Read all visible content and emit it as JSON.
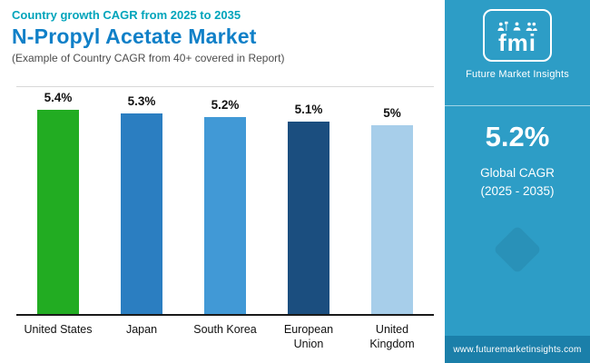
{
  "header": {
    "eyebrow": "Country growth CAGR from 2025 to 2035",
    "title": "N-Propyl Acetate Market",
    "subtitle": "(Example of Country CAGR from 40+ covered in Report)"
  },
  "chart_data": {
    "type": "bar",
    "title": "N-Propyl Acetate Market - Country growth CAGR from 2025 to 2035",
    "categories": [
      "United States",
      "Japan",
      "South Korea",
      "European Union",
      "United Kingdom"
    ],
    "values": [
      5.4,
      5.3,
      5.2,
      5.1,
      5.0
    ],
    "value_labels": [
      "5.4%",
      "5.3%",
      "5.2%",
      "5.1%",
      "5%"
    ],
    "bar_colors": [
      "#22ac22",
      "#2b7ec1",
      "#4199d6",
      "#1b4e7f",
      "#a7ceea"
    ],
    "xlabel": "",
    "ylabel": "",
    "ylim": [
      0,
      6
    ],
    "grid": false,
    "legend": false
  },
  "sidebar": {
    "brand": "fmi",
    "brand_name": "Future Market Insights",
    "stat_value": "5.2%",
    "stat_label_line1": "Global CAGR",
    "stat_label_line2": "(2025 - 2035)",
    "website": "www.futuremarketinsights.com",
    "background": "#2d9dc6",
    "footer_background": "#1b7fa9"
  },
  "colors": {
    "eyebrow": "#00a4bb",
    "title": "#1080c8",
    "subtitle": "#4d4d4d",
    "axis": "#1a1a1a",
    "plot_top_line": "#d8d8d8"
  },
  "icons": [
    "presenter-icon",
    "person-icon",
    "people-icon"
  ]
}
